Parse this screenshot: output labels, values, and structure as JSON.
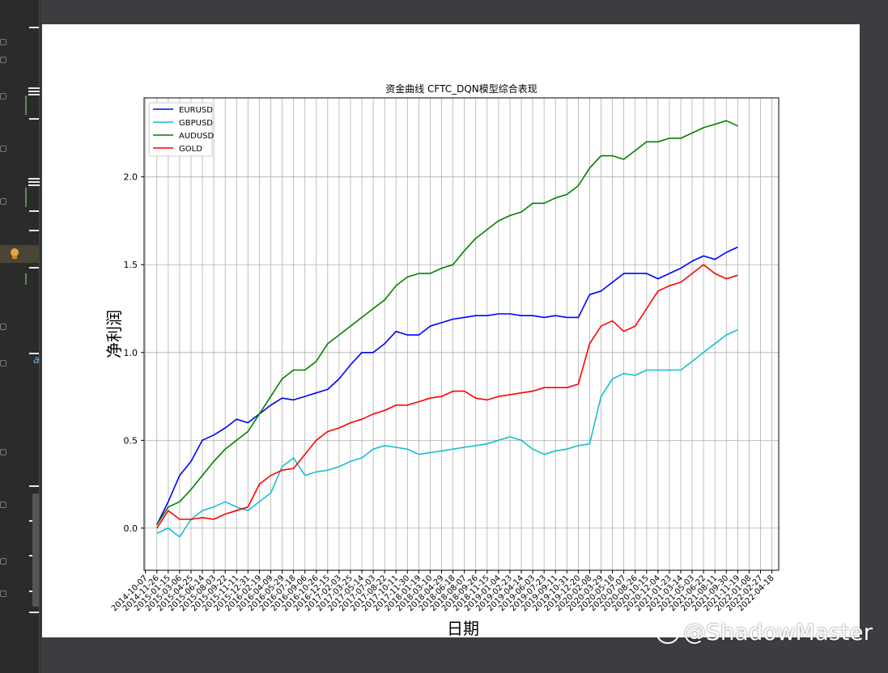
{
  "chart_data": {
    "type": "line",
    "title": "资金曲线 CFTC_DQN模型综合表现",
    "xlabel": "日期",
    "ylabel": "净利润",
    "ylim": [
      -0.24,
      2.45
    ],
    "yticks": [
      0.0,
      0.5,
      1.0,
      1.5,
      2.0
    ],
    "grid": true,
    "legend_position": "upper-left",
    "x_tick_labels": [
      "2014-10-07",
      "2014-11-26",
      "2015-01-15",
      "2015-03-06",
      "2015-04-25",
      "2015-06-14",
      "2015-08-03",
      "2015-09-22",
      "2015-11-11",
      "2015-12-31",
      "2016-02-19",
      "2016-04-09",
      "2016-05-29",
      "2016-07-18",
      "2016-09-06",
      "2016-10-26",
      "2016-12-15",
      "2017-02-03",
      "2017-03-25",
      "2017-05-14",
      "2017-07-03",
      "2017-08-22",
      "2017-10-11",
      "2017-11-30",
      "2018-01-19",
      "2018-03-10",
      "2018-04-29",
      "2018-06-18",
      "2018-08-07",
      "2018-09-26",
      "2018-11-15",
      "2019-01-04",
      "2019-02-23",
      "2019-04-14",
      "2019-06-03",
      "2019-07-23",
      "2019-09-11",
      "2019-10-31",
      "2019-12-20",
      "2020-02-08",
      "2020-03-29",
      "2020-05-18",
      "2020-07-07",
      "2020-08-26",
      "2020-10-15",
      "2020-12-04",
      "2021-01-23",
      "2021-03-14",
      "2021-05-03",
      "2021-06-22",
      "2021-08-11",
      "2021-09-30",
      "2021-11-19",
      "2022-01-08",
      "2022-02-27",
      "2022-04-18"
    ],
    "x": [
      "2014-11-26",
      "2015-01-15",
      "2015-03-06",
      "2015-04-25",
      "2015-06-14",
      "2015-08-03",
      "2015-09-22",
      "2015-11-11",
      "2015-12-31",
      "2016-02-19",
      "2016-04-09",
      "2016-05-29",
      "2016-07-18",
      "2016-09-06",
      "2016-10-26",
      "2016-12-15",
      "2017-02-03",
      "2017-03-25",
      "2017-05-14",
      "2017-07-03",
      "2017-08-22",
      "2017-10-11",
      "2017-11-30",
      "2018-01-19",
      "2018-03-10",
      "2018-04-29",
      "2018-06-18",
      "2018-08-07",
      "2018-09-26",
      "2018-11-15",
      "2019-01-04",
      "2019-02-23",
      "2019-04-14",
      "2019-06-03",
      "2019-07-23",
      "2019-09-11",
      "2019-10-31",
      "2019-12-20",
      "2020-02-08",
      "2020-03-29",
      "2020-05-18",
      "2020-07-07",
      "2020-08-26",
      "2020-10-15",
      "2020-12-04",
      "2021-01-23",
      "2021-03-14",
      "2021-05-03",
      "2021-06-22",
      "2021-08-11",
      "2021-09-30",
      "2021-11-19"
    ],
    "series": [
      {
        "name": "EURUSD",
        "color": "#0000ff",
        "values": [
          0.02,
          0.15,
          0.3,
          0.38,
          0.5,
          0.53,
          0.57,
          0.62,
          0.6,
          0.65,
          0.7,
          0.74,
          0.73,
          0.75,
          0.77,
          0.79,
          0.85,
          0.93,
          1.0,
          1.0,
          1.05,
          1.12,
          1.1,
          1.1,
          1.15,
          1.17,
          1.19,
          1.2,
          1.21,
          1.21,
          1.22,
          1.22,
          1.21,
          1.21,
          1.2,
          1.21,
          1.2,
          1.2,
          1.33,
          1.35,
          1.4,
          1.45,
          1.45,
          1.45,
          1.42,
          1.45,
          1.48,
          1.52,
          1.55,
          1.53,
          1.57,
          1.6
        ]
      },
      {
        "name": "GBPUSD",
        "color": "#17becf",
        "values": [
          -0.03,
          0.0,
          -0.05,
          0.05,
          0.1,
          0.12,
          0.15,
          0.12,
          0.1,
          0.15,
          0.2,
          0.35,
          0.4,
          0.3,
          0.32,
          0.33,
          0.35,
          0.38,
          0.4,
          0.45,
          0.47,
          0.46,
          0.45,
          0.42,
          0.43,
          0.44,
          0.45,
          0.46,
          0.47,
          0.48,
          0.5,
          0.52,
          0.5,
          0.45,
          0.42,
          0.44,
          0.45,
          0.47,
          0.48,
          0.75,
          0.85,
          0.88,
          0.87,
          0.9,
          0.9,
          0.9,
          0.9,
          0.95,
          1.0,
          1.05,
          1.1,
          1.13
        ]
      },
      {
        "name": "AUDUSD",
        "color": "#008000",
        "values": [
          0.02,
          0.12,
          0.15,
          0.22,
          0.3,
          0.38,
          0.45,
          0.5,
          0.55,
          0.65,
          0.75,
          0.85,
          0.9,
          0.9,
          0.95,
          1.05,
          1.1,
          1.15,
          1.2,
          1.25,
          1.3,
          1.38,
          1.43,
          1.45,
          1.45,
          1.48,
          1.5,
          1.58,
          1.65,
          1.7,
          1.75,
          1.78,
          1.8,
          1.85,
          1.85,
          1.88,
          1.9,
          1.95,
          2.05,
          2.12,
          2.12,
          2.1,
          2.15,
          2.2,
          2.2,
          2.22,
          2.22,
          2.25,
          2.28,
          2.3,
          2.32,
          2.29
        ]
      },
      {
        "name": "GOLD",
        "color": "#ff0000",
        "values": [
          0.0,
          0.1,
          0.05,
          0.05,
          0.06,
          0.05,
          0.08,
          0.1,
          0.12,
          0.25,
          0.3,
          0.33,
          0.34,
          0.42,
          0.5,
          0.55,
          0.57,
          0.6,
          0.62,
          0.65,
          0.67,
          0.7,
          0.7,
          0.72,
          0.74,
          0.75,
          0.78,
          0.78,
          0.74,
          0.73,
          0.75,
          0.76,
          0.77,
          0.78,
          0.8,
          0.8,
          0.8,
          0.82,
          1.05,
          1.15,
          1.18,
          1.12,
          1.15,
          1.25,
          1.35,
          1.38,
          1.4,
          1.45,
          1.5,
          1.45,
          1.42,
          1.44
        ]
      }
    ]
  },
  "watermark": {
    "text": "@ShadowMaster"
  },
  "sidebar": {
    "italic_letter": "a"
  },
  "colors": {
    "background": "#3b3d40",
    "figure": "#ffffff",
    "grid": "#b0b0b0"
  }
}
